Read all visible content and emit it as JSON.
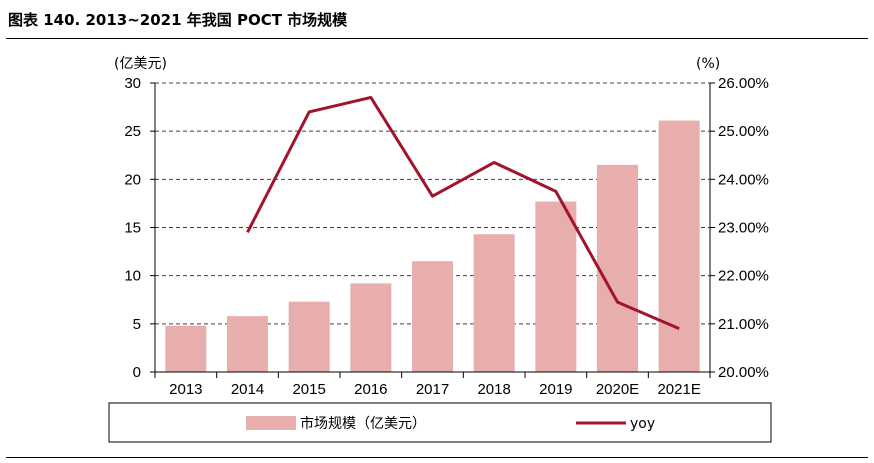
{
  "title": "图表 140. 2013~2021 年我国 POCT 市场规模",
  "chart_data": {
    "type": "bar",
    "categories": [
      "2013",
      "2014",
      "2015",
      "2016",
      "2017",
      "2018",
      "2019",
      "2020E",
      "2021E"
    ],
    "series": [
      {
        "name": "市场规模（亿美元）",
        "type": "bar",
        "axis": "left",
        "values": [
          4.8,
          5.8,
          7.3,
          9.2,
          11.5,
          14.3,
          17.7,
          21.5,
          26.1
        ]
      },
      {
        "name": "yoy",
        "type": "line",
        "axis": "right",
        "values": [
          null,
          22.9,
          25.4,
          25.7,
          23.65,
          24.35,
          23.75,
          21.45,
          20.9
        ]
      }
    ],
    "y_left": {
      "label": "(亿美元)",
      "ylim": [
        0,
        30
      ],
      "ticks": [
        "0",
        "5",
        "10",
        "15",
        "20",
        "25",
        "30"
      ]
    },
    "y_right": {
      "label": "(%)",
      "ylim": [
        20,
        26
      ],
      "ticks": [
        "20.00%",
        "21.00%",
        "22.00%",
        "23.00%",
        "24.00%",
        "25.00%",
        "26.00%"
      ]
    },
    "grid": true,
    "legend": "bottom",
    "colors": {
      "bar": "#e8aeae",
      "line": "#a0142c"
    }
  }
}
